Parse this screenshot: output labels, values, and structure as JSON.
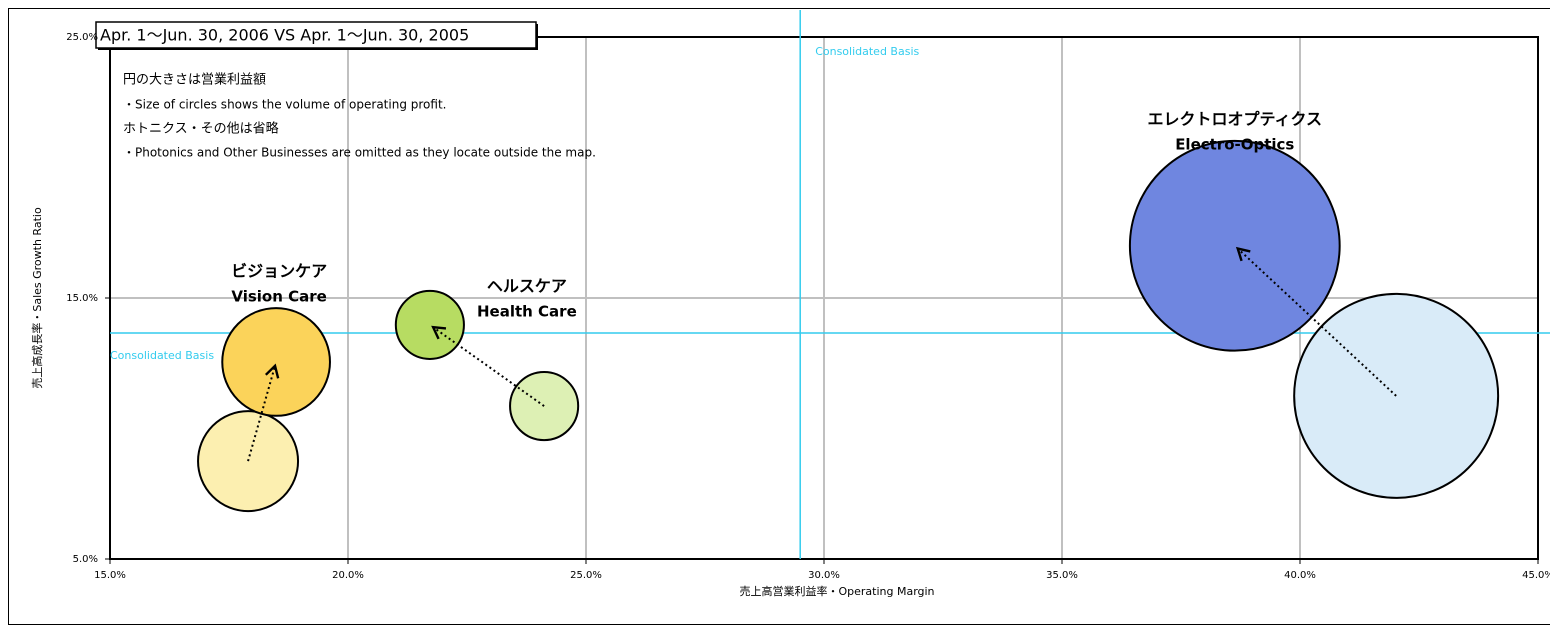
{
  "chart_data": {
    "type": "bubble",
    "title": "Apr. 1〜Jun. 30, 2006 VS Apr. 1〜Jun. 30, 2005",
    "notes": [
      "円の大きさは営業利益額",
      "・Size of circles shows the volume of operating profit.",
      "ホトニクス・その他は省略",
      "・Photonics and Other Businesses are omitted as  they locate outside the map."
    ],
    "x_label": "売上高営業利益率・Operating Margin",
    "y_label": "売上高成長率・Sales Growth Ratio",
    "xlim": [
      15,
      45
    ],
    "ylim": [
      5,
      25
    ],
    "xticks": [
      {
        "value": 15,
        "label": "15.0%"
      },
      {
        "value": 20,
        "label": "20.0%"
      },
      {
        "value": 25,
        "label": "25.0%"
      },
      {
        "value": 30,
        "label": "30.0%"
      },
      {
        "value": 35,
        "label": "35.0%"
      },
      {
        "value": 40,
        "label": "40.0%"
      },
      {
        "value": 45,
        "label": "45.0%"
      }
    ],
    "yticks": [
      {
        "value": 5,
        "label": "5.0%"
      },
      {
        "value": 15,
        "label": "15.0%"
      },
      {
        "value": 25,
        "label": "25.0%"
      }
    ],
    "grid": true,
    "reference": {
      "label": "Consolidated Basis",
      "x": 29.5,
      "y": 13.66,
      "color": "#33ccee"
    },
    "series": [
      {
        "name": "ビジョンケア",
        "name_en": "Vision Care",
        "colors": [
          "#fcefb0",
          "#fbd35a"
        ],
        "x": [
          17.9,
          18.49
        ],
        "y": [
          8.75,
          12.55
        ],
        "size": [
          25,
          29
        ]
      },
      {
        "name": "ヘルスケア",
        "name_en": "Health Care",
        "colors": [
          "#ddf0b4",
          "#b7dc62"
        ],
        "x": [
          24.12,
          21.72
        ],
        "y": [
          10.86,
          13.97
        ],
        "size": [
          11.6,
          11.6
        ]
      },
      {
        "name": "エレクトロオプティクス",
        "name_en": "Electro-Optics",
        "colors": [
          "#d9ebf8",
          "#6f86e0"
        ],
        "x": [
          42.02,
          38.63
        ],
        "y": [
          11.25,
          17.0
        ],
        "size": [
          104,
          110
        ]
      }
    ]
  }
}
